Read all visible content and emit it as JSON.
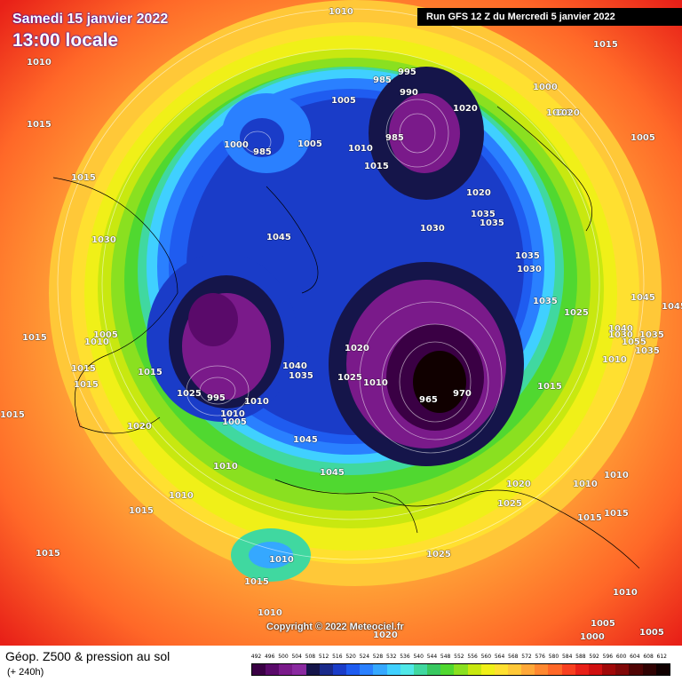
{
  "header": {
    "date": "Samedi 15 janvier 2022",
    "time": "13:00 locale",
    "run": "Run GFS 12 Z du Mercredi 5 janvier 2022"
  },
  "copyright": "Copyright © 2022 Meteociel.fr",
  "footer": {
    "title": "Géop. Z500 & pression au sol",
    "subtitle": "(+ 240h)"
  },
  "scale": {
    "ticks": [
      "492",
      "496",
      "500",
      "504",
      "508",
      "512",
      "516",
      "520",
      "524",
      "528",
      "532",
      "536",
      "540",
      "544",
      "548",
      "552",
      "556",
      "560",
      "564",
      "568",
      "572",
      "576",
      "580",
      "584",
      "588",
      "592",
      "596",
      "600",
      "604",
      "608",
      "612"
    ],
    "colors": [
      "#3a0044",
      "#5a0a6a",
      "#7a1a8a",
      "#8a2aa0",
      "#15154a",
      "#1a2a8a",
      "#1a3cc8",
      "#1f5cf0",
      "#2a80ff",
      "#35a8ff",
      "#40d0ff",
      "#50e8e8",
      "#40d8a0",
      "#38c860",
      "#50d830",
      "#8ae020",
      "#c8e810",
      "#f0f018",
      "#ffe030",
      "#ffc838",
      "#ffa838",
      "#ff8830",
      "#ff6828",
      "#f84020",
      "#e82018",
      "#d01010",
      "#a00808",
      "#800808",
      "#500404",
      "#300202",
      "#100000"
    ]
  },
  "isobars": [
    {
      "v": "1010",
      "cls": ""
    },
    {
      "v": "1015",
      "cls": ""
    },
    {
      "v": "1010",
      "cls": ""
    },
    {
      "v": "1015",
      "cls": ""
    },
    {
      "v": "995",
      "cls": ""
    },
    {
      "v": "985",
      "cls": ""
    },
    {
      "v": "990",
      "cls": ""
    },
    {
      "v": "1000",
      "cls": ""
    },
    {
      "v": "1020",
      "cls": ""
    },
    {
      "v": "1020",
      "cls": ""
    },
    {
      "v": "1005",
      "cls": ""
    },
    {
      "v": "1000",
      "cls": ""
    },
    {
      "v": "985",
      "cls": ""
    },
    {
      "v": "1005",
      "cls": ""
    },
    {
      "v": "985",
      "cls": ""
    },
    {
      "v": "1005",
      "cls": ""
    },
    {
      "v": "1010",
      "cls": ""
    },
    {
      "v": "1020",
      "cls": ""
    },
    {
      "v": "1015",
      "cls": ""
    },
    {
      "v": "1015",
      "cls": ""
    },
    {
      "v": "1020",
      "cls": ""
    },
    {
      "v": "1030",
      "cls": ""
    },
    {
      "v": "1045",
      "cls": ""
    },
    {
      "v": "1035",
      "cls": ""
    },
    {
      "v": "1035",
      "cls": ""
    },
    {
      "v": "1030",
      "cls": ""
    },
    {
      "v": "1035",
      "cls": ""
    },
    {
      "v": "1030",
      "cls": ""
    },
    {
      "v": "1035",
      "cls": ""
    },
    {
      "v": "1025",
      "cls": ""
    },
    {
      "v": "1045",
      "cls": ""
    },
    {
      "v": "1015",
      "cls": ""
    },
    {
      "v": "1005",
      "cls": ""
    },
    {
      "v": "1010",
      "cls": ""
    },
    {
      "v": "1015",
      "cls": ""
    },
    {
      "v": "1015",
      "cls": ""
    },
    {
      "v": "1020",
      "cls": ""
    },
    {
      "v": "1015",
      "cls": ""
    },
    {
      "v": "1025",
      "cls": ""
    },
    {
      "v": "995",
      "cls": ""
    },
    {
      "v": "1010",
      "cls": ""
    },
    {
      "v": "1005",
      "cls": ""
    },
    {
      "v": "1010",
      "cls": ""
    },
    {
      "v": "1040",
      "cls": ""
    },
    {
      "v": "1035",
      "cls": ""
    },
    {
      "v": "1020",
      "cls": ""
    },
    {
      "v": "1025",
      "cls": ""
    },
    {
      "v": "1010",
      "cls": ""
    },
    {
      "v": "965",
      "cls": ""
    },
    {
      "v": "970",
      "cls": ""
    },
    {
      "v": "1015",
      "cls": ""
    },
    {
      "v": "1015",
      "cls": ""
    },
    {
      "v": "1040",
      "cls": ""
    },
    {
      "v": "1035",
      "cls": ""
    },
    {
      "v": "1045",
      "cls": ""
    },
    {
      "v": "1055",
      "cls": ""
    },
    {
      "v": "1035",
      "cls": ""
    },
    {
      "v": "1030",
      "cls": ""
    },
    {
      "v": "1010",
      "cls": ""
    },
    {
      "v": "1045",
      "cls": ""
    },
    {
      "v": "1010",
      "cls": ""
    },
    {
      "v": "1010",
      "cls": ""
    },
    {
      "v": "1045",
      "cls": ""
    },
    {
      "v": "1015",
      "cls": ""
    },
    {
      "v": "1020",
      "cls": ""
    },
    {
      "v": "1025",
      "cls": ""
    },
    {
      "v": "1010",
      "cls": ""
    },
    {
      "v": "1010",
      "cls": ""
    },
    {
      "v": "1015",
      "cls": ""
    },
    {
      "v": "1015",
      "cls": ""
    },
    {
      "v": "1015",
      "cls": ""
    },
    {
      "v": "1010",
      "cls": ""
    },
    {
      "v": "1025",
      "cls": ""
    },
    {
      "v": "1015",
      "cls": ""
    },
    {
      "v": "1010",
      "cls": ""
    },
    {
      "v": "1010",
      "cls": ""
    },
    {
      "v": "1005",
      "cls": ""
    },
    {
      "v": "1000",
      "cls": ""
    },
    {
      "v": "1005",
      "cls": ""
    },
    {
      "v": "1020",
      "cls": ""
    }
  ]
}
